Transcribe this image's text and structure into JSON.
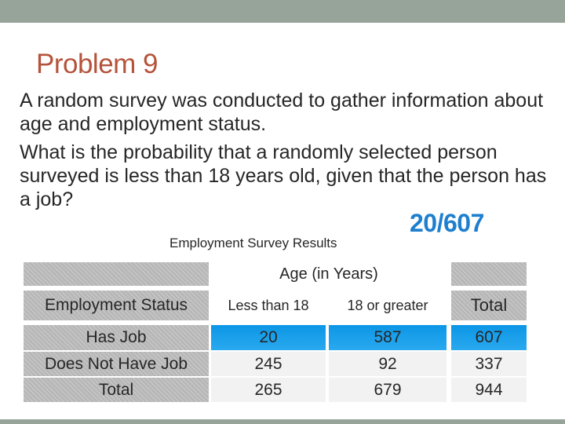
{
  "slide": {
    "title": "Problem 9",
    "paragraph1": "A random survey was conducted to gather information about age and employment status.",
    "paragraph2": "What is the probability that a randomly selected person surveyed is less than 18 years old, given that the person has a job?",
    "answer": "20/607"
  },
  "table": {
    "caption": "Employment Survey Results",
    "group_header": "Age (in Years)",
    "col_headers": [
      "Employment Status",
      "Less than 18",
      "18 or greater",
      "Total"
    ],
    "rows": [
      {
        "label": "Has Job",
        "values": [
          "20",
          "587",
          "607"
        ]
      },
      {
        "label": "Does Not Have Job",
        "values": [
          "245",
          "92",
          "337"
        ]
      },
      {
        "label": "Total",
        "values": [
          "265",
          "679",
          "944"
        ]
      }
    ]
  },
  "colors": {
    "bar": "#97a49a",
    "title": "#b5533a",
    "answer": "#1e7fcf",
    "highlight": "#1a9be8",
    "table_gray": "#b7b7b7"
  }
}
